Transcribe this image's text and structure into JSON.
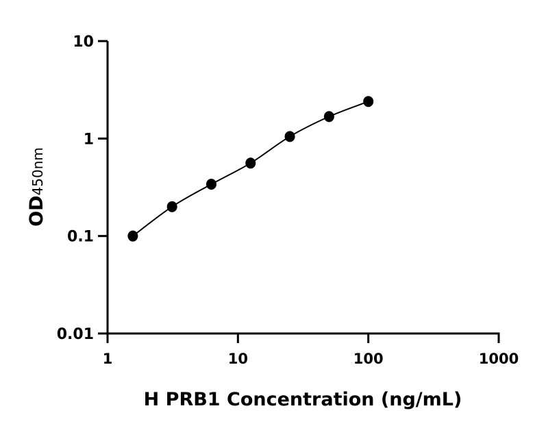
{
  "chart_data": {
    "type": "scatter",
    "title": "",
    "xlabel": "H PRB1 Concentration (ng/mL)",
    "ylabel_main": "OD",
    "ylabel_sub": "450nm",
    "x_scale": "log",
    "y_scale": "log",
    "xlim": [
      1,
      1000
    ],
    "ylim": [
      0.01,
      10
    ],
    "x_ticks": [
      "1",
      "10",
      "100",
      "1000"
    ],
    "y_ticks": [
      "0.01",
      "0.1",
      "1",
      "10"
    ],
    "grid": false,
    "fit_curve": true,
    "x": [
      1.5625,
      3.125,
      6.25,
      12.5,
      25,
      50,
      100
    ],
    "y": [
      0.1,
      0.2,
      0.34,
      0.56,
      1.05,
      1.68,
      2.4
    ],
    "color": "#000000"
  }
}
